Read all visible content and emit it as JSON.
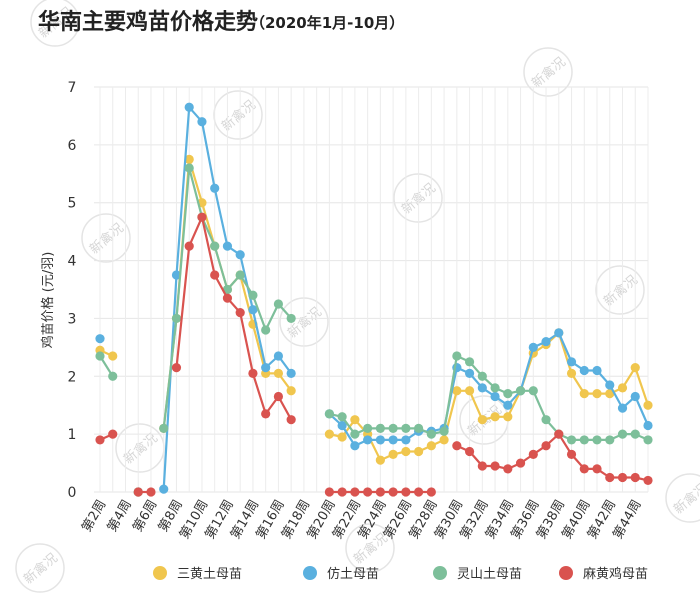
{
  "header": {
    "title": "华南主要鸡苗价格走势",
    "subtitle": "（2020年1月-10月）"
  },
  "watermark": "新禽况",
  "chart_data": {
    "type": "line",
    "ylabel": "鸡苗价格 (元/羽)",
    "xlabel": "",
    "ylim": [
      0,
      7
    ],
    "y_ticks": [
      0,
      1,
      2,
      3,
      4,
      5,
      6,
      7
    ],
    "grid": true,
    "legend_position": "bottom",
    "x": [
      "第2周",
      "第3周",
      "第4周",
      "第5周",
      "第6周",
      "第7周",
      "第8周",
      "第9周",
      "第10周",
      "第11周",
      "第12周",
      "第13周",
      "第14周",
      "第15周",
      "第16周",
      "第17周",
      "第18周",
      "第19周",
      "第20周",
      "第21周",
      "第22周",
      "第23周",
      "第24周",
      "第25周",
      "第26周",
      "第27周",
      "第28周",
      "第29周",
      "第30周",
      "第31周",
      "第32周",
      "第33周",
      "第34周",
      "第35周",
      "第36周",
      "第37周",
      "第38周",
      "第39周",
      "第40周",
      "第41周",
      "第42周",
      "第43周",
      "第44周",
      "第45周"
    ],
    "x_tick_labels": [
      "第2周",
      "第4周",
      "第6周",
      "第8周",
      "第10周",
      "第12周",
      "第14周",
      "第16周",
      "第18周",
      "第20周",
      "第22周",
      "第24周",
      "第26周",
      "第28周",
      "第30周",
      "第32周",
      "第34周",
      "第36周",
      "第38周",
      "第40周",
      "第42周",
      "第44周"
    ],
    "series": [
      {
        "name": "三黄土母苗",
        "color": "#f0c64e",
        "values": [
          2.45,
          2.35,
          null,
          0,
          null,
          1.1,
          3,
          5.75,
          5,
          4.25,
          3.5,
          3.75,
          2.9,
          2.05,
          2.05,
          1.75,
          null,
          null,
          1,
          0.95,
          1.25,
          1,
          0.55,
          0.65,
          0.7,
          0.7,
          0.8,
          0.9,
          1.75,
          1.75,
          1.25,
          1.3,
          1.3,
          1.75,
          2.4,
          2.55,
          2.75,
          2.05,
          1.7,
          1.7,
          1.7,
          1.8,
          2.15,
          1.5
        ]
      },
      {
        "name": "仿土母苗",
        "color": "#5ab0df",
        "values": [
          2.65,
          null,
          null,
          0,
          null,
          0.05,
          3.75,
          6.65,
          6.4,
          5.25,
          4.25,
          4.1,
          3.15,
          2.15,
          2.35,
          2.05,
          null,
          null,
          1.35,
          1.15,
          0.8,
          0.9,
          0.9,
          0.9,
          0.9,
          1.05,
          1.05,
          1.1,
          2.15,
          2.05,
          1.8,
          1.65,
          1.5,
          1.75,
          2.5,
          2.6,
          2.75,
          2.25,
          2.1,
          2.1,
          1.85,
          1.45,
          1.65,
          1.15
        ]
      },
      {
        "name": "灵山土母苗",
        "color": "#7dbf9a",
        "values": [
          2.35,
          2.0,
          null,
          0,
          null,
          1.1,
          3.0,
          5.6,
          4.75,
          4.25,
          3.5,
          3.75,
          3.4,
          2.8,
          3.25,
          3.0,
          null,
          null,
          1.35,
          1.3,
          1.0,
          1.1,
          1.1,
          1.1,
          1.1,
          1.1,
          1.0,
          1.05,
          2.35,
          2.25,
          2.0,
          1.8,
          1.7,
          1.75,
          1.75,
          1.25,
          1.0,
          0.9,
          0.9,
          0.9,
          0.9,
          1.0,
          1.0,
          0.9
        ]
      },
      {
        "name": "麻黄鸡母苗",
        "color": "#d9534f",
        "values": [
          0.9,
          1.0,
          null,
          0,
          0,
          null,
          2.15,
          4.25,
          4.75,
          3.75,
          3.35,
          3.1,
          2.05,
          1.35,
          1.65,
          1.25,
          null,
          null,
          0,
          0,
          0,
          0,
          0,
          0,
          0,
          0,
          0,
          null,
          0.8,
          0.7,
          0.45,
          0.45,
          0.4,
          0.5,
          0.65,
          0.8,
          1.0,
          0.65,
          0.4,
          0.4,
          0.25,
          0.25,
          0.25,
          0.2
        ]
      }
    ]
  }
}
